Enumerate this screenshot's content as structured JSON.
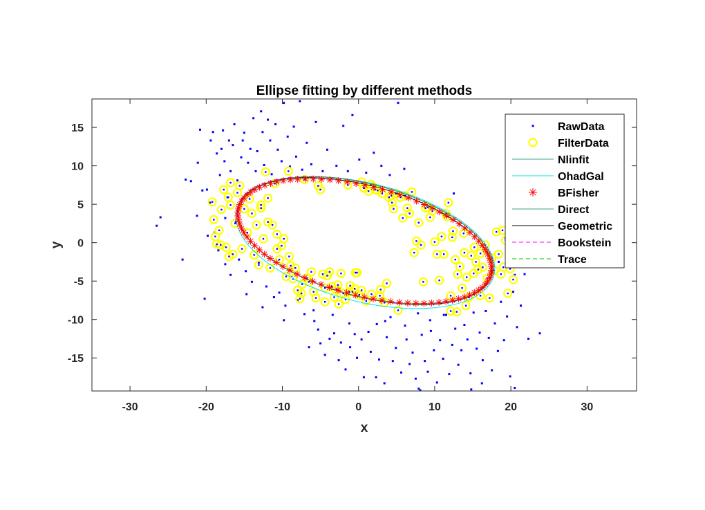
{
  "chart_data": {
    "type": "scatter",
    "title": "Ellipse fitting by different methods",
    "xlabel": "x",
    "ylabel": "y",
    "xlim": [
      -35,
      36.5
    ],
    "ylim": [
      -19.3,
      18.7
    ],
    "xticks": [
      -30,
      -20,
      -10,
      0,
      10,
      20,
      30
    ],
    "yticks": [
      -15,
      -10,
      -5,
      0,
      5,
      10,
      15
    ],
    "grid": false,
    "legend_position": "top-right",
    "legend": [
      {
        "name": "RawData",
        "marker": "dot",
        "color": "#0000ff"
      },
      {
        "name": "FilterData",
        "marker": "circle",
        "color": "#ffff00"
      },
      {
        "name": "Nlinfit",
        "marker": "line",
        "color": "#3aa58b"
      },
      {
        "name": "OhadGal",
        "marker": "line",
        "color": "#00e6e6"
      },
      {
        "name": "BFisher",
        "marker": "asterisk",
        "color": "#ff0000"
      },
      {
        "name": "Direct",
        "marker": "line",
        "color": "#3aa58b"
      },
      {
        "name": "Geometric",
        "marker": "line",
        "color": "#000000"
      },
      {
        "name": "Bookstein",
        "marker": "dashed",
        "color": "#ff00ff"
      },
      {
        "name": "Trace",
        "marker": "dashed",
        "color": "#00cc00"
      }
    ],
    "raw_data": [
      [
        -26.5,
        2.2
      ],
      [
        -26,
        3.3
      ],
      [
        -22.7,
        8.2
      ],
      [
        -22,
        8
      ],
      [
        -21.1,
        10.4
      ],
      [
        -20.8,
        14.7
      ],
      [
        -20.5,
        6.8
      ],
      [
        -20.2,
        -7.3
      ],
      [
        -19.9,
        6.9
      ],
      [
        -19.5,
        5.2
      ],
      [
        -19.4,
        13.3
      ],
      [
        -19.1,
        14.4
      ],
      [
        -18.9,
        1.3
      ],
      [
        -18.6,
        11.6
      ],
      [
        -18.4,
        -1
      ],
      [
        -18.2,
        8.8
      ],
      [
        -18,
        12.2
      ],
      [
        -17.8,
        14.6
      ],
      [
        -17.6,
        10.6
      ],
      [
        -17.5,
        3.2
      ],
      [
        -17.2,
        5.9
      ],
      [
        -17,
        13.3
      ],
      [
        -16.8,
        9.3
      ],
      [
        -16.5,
        12.7
      ],
      [
        -16.3,
        15.4
      ],
      [
        -16.1,
        2.7
      ],
      [
        -15.9,
        8.1
      ],
      [
        -15.7,
        -2.2
      ],
      [
        -15.4,
        11.1
      ],
      [
        -15.2,
        13.3
      ],
      [
        -15,
        14.3
      ],
      [
        -14.8,
        -3.7
      ],
      [
        -14.5,
        10.4
      ],
      [
        -14.2,
        12.2
      ],
      [
        -14,
        -5.1
      ],
      [
        -13.8,
        16.2
      ],
      [
        -13.5,
        9.3
      ],
      [
        -13.3,
        11.9
      ],
      [
        -13.1,
        -2.6
      ],
      [
        -12.8,
        17.1
      ],
      [
        -12.6,
        14.4
      ],
      [
        -12.4,
        10.1
      ],
      [
        -12.1,
        -5.7
      ],
      [
        -11.9,
        16
      ],
      [
        -11.6,
        13.3
      ],
      [
        -11.4,
        8.9
      ],
      [
        -11.1,
        -7.1
      ],
      [
        -10.9,
        15.4
      ],
      [
        -10.6,
        12.1
      ],
      [
        -10.4,
        -6.5
      ],
      [
        -10.1,
        10.6
      ],
      [
        -9.8,
        18.2
      ],
      [
        -9.6,
        -8.2
      ],
      [
        -9.3,
        13.8
      ],
      [
        -9,
        9.9
      ],
      [
        -8.8,
        -4.3
      ],
      [
        -8.5,
        15.1
      ],
      [
        -8.2,
        11.2
      ],
      [
        -8,
        -7.5
      ],
      [
        -7.7,
        18.4
      ],
      [
        -7.4,
        9.5
      ],
      [
        -7.1,
        -9.3
      ],
      [
        -6.8,
        13
      ],
      [
        -6.5,
        -13.6
      ],
      [
        -6.2,
        10.2
      ],
      [
        -5.9,
        -8.8
      ],
      [
        -5.6,
        15.7
      ],
      [
        -5.3,
        -11.3
      ],
      [
        -5,
        -13.1
      ],
      [
        -4.7,
        9.3
      ],
      [
        -4.4,
        -14.6
      ],
      [
        -4.1,
        12.1
      ],
      [
        -3.8,
        -12.5
      ],
      [
        -3.5,
        18.8
      ],
      [
        -3.2,
        -11.8
      ],
      [
        -2.9,
        10
      ],
      [
        -2.6,
        -15.3
      ],
      [
        -2.3,
        -13
      ],
      [
        -2,
        15.2
      ],
      [
        -1.7,
        -16.5
      ],
      [
        -1.4,
        9.3
      ],
      [
        -1.1,
        -13.6
      ],
      [
        -0.8,
        16.6
      ],
      [
        -0.5,
        -11.9
      ],
      [
        -0.2,
        -15
      ],
      [
        0.1,
        10.8
      ],
      [
        0.4,
        -12.6
      ],
      [
        0.7,
        -17.5
      ],
      [
        1,
        9.1
      ],
      [
        1.3,
        -11.6
      ],
      [
        1.6,
        -14.2
      ],
      [
        2,
        11.7
      ],
      [
        2.3,
        -17.5
      ],
      [
        2.7,
        -15.2
      ],
      [
        3,
        10
      ],
      [
        3.4,
        -18.3
      ],
      [
        3.7,
        -12.3
      ],
      [
        4.1,
        8.8
      ],
      [
        4.5,
        -15.4
      ],
      [
        4.9,
        -13.7
      ],
      [
        5.2,
        18.2
      ],
      [
        5.6,
        -16.9
      ],
      [
        6,
        9.6
      ],
      [
        6.3,
        -12.6
      ],
      [
        6.7,
        -15.8
      ],
      [
        7.1,
        -14.3
      ],
      [
        7.5,
        -17.7
      ],
      [
        7.9,
        -19
      ],
      [
        8.3,
        -12
      ],
      [
        8.7,
        -15.4
      ],
      [
        9.1,
        -16.8
      ],
      [
        9.5,
        -11.5
      ],
      [
        9.9,
        -14
      ],
      [
        10.3,
        -18.2
      ],
      [
        10.7,
        -12.7
      ],
      [
        11.1,
        -15.1
      ],
      [
        11.5,
        -9.4
      ],
      [
        11.9,
        -17.1
      ],
      [
        12.3,
        -13.3
      ],
      [
        12.7,
        -11.2
      ],
      [
        13.1,
        -15.9
      ],
      [
        13.5,
        -14
      ],
      [
        13.9,
        -10.7
      ],
      [
        14.3,
        -12.6
      ],
      [
        14.7,
        -17
      ],
      [
        15.1,
        -9.1
      ],
      [
        15.5,
        -13.8
      ],
      [
        15.9,
        -11.7
      ],
      [
        16.3,
        -15.3
      ],
      [
        16.7,
        -8.9
      ],
      [
        17.1,
        -12.4
      ],
      [
        17.5,
        -16.6
      ],
      [
        17.9,
        -10.5
      ],
      [
        18.3,
        -14.1
      ],
      [
        18.7,
        -7.7
      ],
      [
        19.1,
        -12.7
      ],
      [
        19.5,
        -9.6
      ],
      [
        19.9,
        -17.4
      ],
      [
        20.3,
        -6.4
      ],
      [
        20.8,
        -11
      ],
      [
        21.3,
        -8.2
      ],
      [
        21.8,
        -4.1
      ],
      [
        22.3,
        -12.5
      ],
      [
        23.8,
        -11.8
      ],
      [
        20.1,
        2.7
      ],
      [
        20.5,
        -4.2
      ],
      [
        19.3,
        0.6
      ],
      [
        18.4,
        -2.5
      ],
      [
        12.5,
        6.4
      ],
      [
        11.2,
        -9.4
      ],
      [
        2.4,
        -10.6
      ],
      [
        3.5,
        -10.2
      ],
      [
        4.2,
        -9.7
      ],
      [
        6.1,
        -10.8
      ],
      [
        7.8,
        -9.2
      ],
      [
        9.4,
        -10.1
      ],
      [
        -1.2,
        -10.5
      ],
      [
        -3.4,
        -9.4
      ],
      [
        -5.8,
        -10.2
      ],
      [
        -9.8,
        -10.1
      ],
      [
        -12.6,
        -8.4
      ],
      [
        -14.7,
        -6.7
      ],
      [
        -16.8,
        -4.2
      ],
      [
        -17.5,
        -2.8
      ],
      [
        -18.6,
        -0.4
      ],
      [
        -19.8,
        0.9
      ],
      [
        -21.2,
        3.5
      ],
      [
        -23.1,
        -2.2
      ],
      [
        8.1,
        -19.2
      ],
      [
        9.9,
        -19.6
      ],
      [
        14.8,
        -19.1
      ],
      [
        16.2,
        -18.3
      ],
      [
        18,
        -19.8
      ],
      [
        20.5,
        -18.9
      ]
    ],
    "filter_data": [
      [
        -19.2,
        5.3
      ],
      [
        -19,
        3
      ],
      [
        -18.8,
        0.8
      ],
      [
        -18.6,
        -0.2
      ],
      [
        -18.3,
        1.6
      ],
      [
        -18,
        4.3
      ],
      [
        -17.7,
        6.9
      ],
      [
        -17.4,
        -0.6
      ],
      [
        -17.1,
        5.9
      ],
      [
        -16.8,
        7.8
      ],
      [
        -16.5,
        -1.5
      ],
      [
        -16.2,
        2.5
      ],
      [
        -15.9,
        6.5
      ],
      [
        -15.6,
        7.4
      ],
      [
        -15.3,
        -0.8
      ],
      [
        -15,
        4.4
      ],
      [
        -14.6,
        1.3
      ],
      [
        -14.3,
        5.7
      ],
      [
        -14,
        3.8
      ],
      [
        -13.7,
        -1.6
      ],
      [
        -13.4,
        2.3
      ],
      [
        -13.1,
        -2.9
      ],
      [
        -12.8,
        4.5
      ],
      [
        -12.5,
        0.5
      ],
      [
        -12.2,
        9.2
      ],
      [
        -11.9,
        2.7
      ],
      [
        -11.6,
        -3.3
      ],
      [
        -11.3,
        2.3
      ],
      [
        -11,
        7.7
      ],
      [
        -10.7,
        1.1
      ],
      [
        -10.4,
        -2.2
      ],
      [
        -10.1,
        -0.4
      ],
      [
        -9.8,
        0.5
      ],
      [
        -9.5,
        -4.4
      ],
      [
        -9.2,
        9.3
      ],
      [
        -8.9,
        -3
      ],
      [
        -8.6,
        -4.7
      ],
      [
        -8.3,
        -3.3
      ],
      [
        -8,
        -6.2
      ],
      [
        -7.7,
        -7.3
      ],
      [
        -7.4,
        -5.4
      ],
      [
        -7.1,
        8.2
      ],
      [
        -6.8,
        -4.6
      ],
      [
        -6.5,
        -5.1
      ],
      [
        -6.2,
        -3.8
      ],
      [
        -5.9,
        -6.4
      ],
      [
        -5.6,
        -7.2
      ],
      [
        -5.3,
        7.4
      ],
      [
        -5,
        6.9
      ],
      [
        -4.7,
        -4.1
      ],
      [
        -4.4,
        -7.7
      ],
      [
        -4.1,
        -4.3
      ],
      [
        -3.8,
        -3.8
      ],
      [
        -3.5,
        -5.7
      ],
      [
        -3.2,
        -7.1
      ],
      [
        -2.9,
        -6.1
      ],
      [
        -2.6,
        -8
      ],
      [
        -2.3,
        -4
      ],
      [
        -2,
        -6.6
      ],
      [
        -1.7,
        -7.4
      ],
      [
        -1.4,
        7.5
      ],
      [
        -1.1,
        -5.6
      ],
      [
        -0.8,
        -6.4
      ],
      [
        -0.5,
        -6
      ],
      [
        -0.2,
        -3.9
      ],
      [
        0.1,
        -6.8
      ],
      [
        0.4,
        7.9
      ],
      [
        0.7,
        7.1
      ],
      [
        1,
        -7.6
      ],
      [
        1.3,
        6.7
      ],
      [
        1.6,
        7.6
      ],
      [
        1.9,
        7.3
      ],
      [
        2.2,
        6.9
      ],
      [
        2.5,
        6.8
      ],
      [
        2.8,
        -6.9
      ],
      [
        3.1,
        6.4
      ],
      [
        3.4,
        -7.8
      ],
      [
        3.7,
        -5.3
      ],
      [
        4,
        5.9
      ],
      [
        4.3,
        6.1
      ],
      [
        4.6,
        4.4
      ],
      [
        4.9,
        6.4
      ],
      [
        5.2,
        -8.8
      ],
      [
        5.5,
        5.9
      ],
      [
        5.8,
        3.2
      ],
      [
        6.1,
        6.1
      ],
      [
        6.4,
        4.5
      ],
      [
        6.7,
        3.8
      ],
      [
        7,
        6.6
      ],
      [
        7.3,
        -1.3
      ],
      [
        7.6,
        0.2
      ],
      [
        7.9,
        2.6
      ],
      [
        8.2,
        -0.3
      ],
      [
        8.5,
        -5.1
      ],
      [
        8.8,
        4.5
      ],
      [
        9.1,
        4.6
      ],
      [
        9.4,
        3.3
      ],
      [
        9.7,
        4.1
      ],
      [
        10,
        0.1
      ],
      [
        10.3,
        -1.5
      ],
      [
        10.6,
        -4.9
      ],
      [
        10.9,
        0.8
      ],
      [
        11.2,
        -1.5
      ],
      [
        11.5,
        3.8
      ],
      [
        11.8,
        5.2
      ],
      [
        12.1,
        -6.9
      ],
      [
        12.4,
        1.5
      ],
      [
        12.7,
        -2.2
      ],
      [
        13,
        -4.1
      ],
      [
        13.3,
        -3.1
      ],
      [
        13.6,
        -5.9
      ],
      [
        13.9,
        -1.3
      ],
      [
        14.2,
        -4.5
      ],
      [
        14.5,
        -7.1
      ],
      [
        14.8,
        -1.7
      ],
      [
        15.1,
        -4
      ],
      [
        15.4,
        -2.5
      ],
      [
        15.7,
        -3.5
      ],
      [
        16,
        -6.9
      ],
      [
        16.3,
        -3.2
      ],
      [
        16.6,
        -0.3
      ],
      [
        16.9,
        -4.6
      ],
      [
        17.2,
        -7.2
      ],
      [
        17.5,
        -2
      ],
      [
        17.8,
        -3.6
      ],
      [
        18.1,
        1.4
      ],
      [
        18.4,
        -1.5
      ],
      [
        18.7,
        -4.1
      ],
      [
        19,
        -3.2
      ],
      [
        19.3,
        0.3
      ],
      [
        19.6,
        -6.6
      ],
      [
        19.9,
        -3.4
      ],
      [
        20.3,
        -4.8
      ],
      [
        18.9,
        1.6
      ],
      [
        12.9,
        -9
      ],
      [
        14.1,
        -8.2
      ],
      [
        12.1,
        -8.9
      ],
      [
        -17,
        -1.8
      ],
      [
        -18.1,
        -0.3
      ],
      [
        -16.8,
        4.9
      ],
      [
        -12.8,
        4.9
      ],
      [
        -11.9,
        5.8
      ],
      [
        -10.7,
        -0.8
      ],
      [
        -9.1,
        -1.8
      ],
      [
        -2.7,
        -5.5
      ],
      [
        -4.4,
        -5.9
      ],
      [
        -1.2,
        -6.4
      ],
      [
        0.4,
        -6.2
      ],
      [
        1.7,
        -6.7
      ],
      [
        2.9,
        -6.1
      ],
      [
        11.6,
        3.4
      ],
      [
        12.3,
        0.7
      ],
      [
        13.8,
        1.2
      ],
      [
        15.2,
        -0.6
      ],
      [
        16,
        -1.4
      ],
      [
        -0.4,
        -3.9
      ],
      [
        -7.5,
        -6.6
      ],
      [
        4.4,
        5.2
      ]
    ],
    "fits": {
      "Nlinfit": {
        "cx": 0.9,
        "cy": 0.3,
        "a": 17.2,
        "b": 7.3,
        "theta_deg": -14.5
      },
      "OhadGal": {
        "cx": 0.9,
        "cy": 0.0,
        "a": 17.4,
        "b": 7.7,
        "theta_deg": -14.0
      },
      "BFisher": {
        "cx": 0.8,
        "cy": 0.2,
        "a": 17.1,
        "b": 7.1,
        "theta_deg": -14.5
      },
      "Direct": {
        "cx": 0.9,
        "cy": 0.3,
        "a": 17.2,
        "b": 7.3,
        "theta_deg": -14.5
      },
      "Geometric": {
        "cx": 0.8,
        "cy": 0.2,
        "a": 17.2,
        "b": 7.2,
        "theta_deg": -15.0
      },
      "Bookstein": {
        "cx": 0.9,
        "cy": 0.3,
        "a": 17.3,
        "b": 7.3,
        "theta_deg": -14.8
      },
      "Trace": {
        "cx": 0.9,
        "cy": 0.3,
        "a": 17.2,
        "b": 7.3,
        "theta_deg": -14.5
      }
    },
    "bfisher_marker_count": 90
  }
}
